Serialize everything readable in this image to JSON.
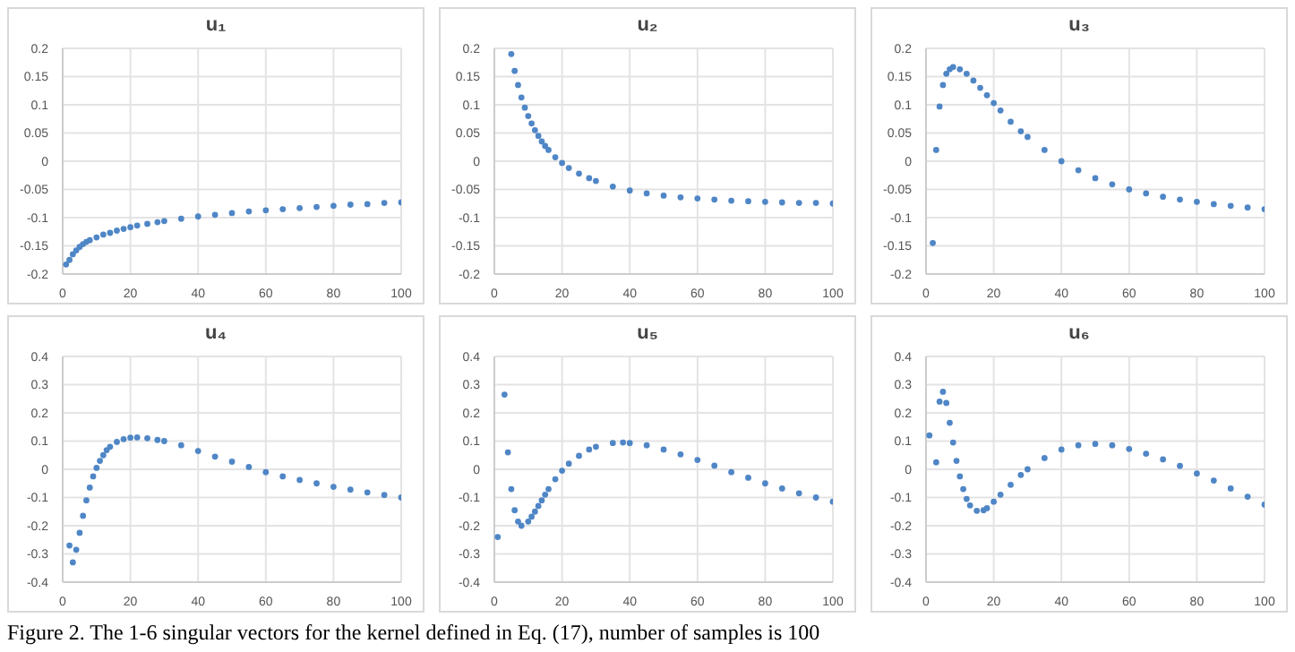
{
  "chart_data": [
    {
      "type": "scatter",
      "title": "u₁",
      "marker": "circle",
      "grid": true,
      "xlim": [
        0,
        100
      ],
      "xticks": [
        0,
        20,
        40,
        60,
        80,
        100
      ],
      "ylim": [
        -0.2,
        0.2
      ],
      "yticks": [
        -0.2,
        -0.15,
        -0.1,
        -0.05,
        0,
        0.05,
        0.1,
        0.15,
        0.2
      ],
      "series": [
        {
          "color": "#4f86c6",
          "x": [
            1,
            2,
            3,
            4,
            5,
            6,
            7,
            8,
            10,
            12,
            14,
            16,
            18,
            20,
            22,
            25,
            28,
            30,
            35,
            40,
            45,
            50,
            55,
            60,
            65,
            70,
            75,
            80,
            85,
            90,
            95,
            100
          ],
          "values": [
            -0.183,
            -0.175,
            -0.165,
            -0.158,
            -0.152,
            -0.147,
            -0.143,
            -0.14,
            -0.135,
            -0.13,
            -0.127,
            -0.123,
            -0.12,
            -0.117,
            -0.114,
            -0.111,
            -0.108,
            -0.106,
            -0.102,
            -0.098,
            -0.095,
            -0.092,
            -0.089,
            -0.087,
            -0.085,
            -0.083,
            -0.081,
            -0.079,
            -0.077,
            -0.076,
            -0.074,
            -0.073
          ]
        }
      ]
    },
    {
      "type": "scatter",
      "title": "u₂",
      "marker": "circle",
      "grid": true,
      "xlim": [
        0,
        100
      ],
      "xticks": [
        0,
        20,
        40,
        60,
        80,
        100
      ],
      "ylim": [
        -0.2,
        0.2
      ],
      "yticks": [
        -0.2,
        -0.15,
        -0.1,
        -0.05,
        0,
        0.05,
        0.1,
        0.15,
        0.2
      ],
      "series": [
        {
          "color": "#4f86c6",
          "x": [
            5,
            6,
            7,
            8,
            9,
            10,
            11,
            12,
            13,
            14,
            15,
            16,
            18,
            20,
            22,
            25,
            28,
            30,
            35,
            40,
            45,
            50,
            55,
            60,
            65,
            70,
            75,
            80,
            85,
            90,
            95,
            100
          ],
          "values": [
            0.19,
            0.16,
            0.135,
            0.113,
            0.095,
            0.08,
            0.067,
            0.055,
            0.045,
            0.035,
            0.027,
            0.02,
            0.007,
            -0.003,
            -0.012,
            -0.022,
            -0.03,
            -0.035,
            -0.045,
            -0.052,
            -0.057,
            -0.061,
            -0.064,
            -0.066,
            -0.068,
            -0.07,
            -0.071,
            -0.072,
            -0.073,
            -0.074,
            -0.074,
            -0.075
          ]
        }
      ]
    },
    {
      "type": "scatter",
      "title": "u₃",
      "marker": "circle",
      "grid": true,
      "xlim": [
        0,
        100
      ],
      "xticks": [
        0,
        20,
        40,
        60,
        80,
        100
      ],
      "ylim": [
        -0.2,
        0.2
      ],
      "yticks": [
        -0.2,
        -0.15,
        -0.1,
        -0.05,
        0,
        0.05,
        0.1,
        0.15,
        0.2
      ],
      "series": [
        {
          "color": "#4f86c6",
          "x": [
            2,
            3,
            4,
            5,
            6,
            7,
            8,
            10,
            12,
            14,
            16,
            18,
            20,
            22,
            25,
            28,
            30,
            35,
            40,
            45,
            50,
            55,
            60,
            65,
            70,
            75,
            80,
            85,
            90,
            95,
            100
          ],
          "values": [
            -0.145,
            0.02,
            0.097,
            0.135,
            0.155,
            0.163,
            0.167,
            0.163,
            0.155,
            0.143,
            0.13,
            0.117,
            0.103,
            0.09,
            0.07,
            0.053,
            0.043,
            0.02,
            0.0,
            -0.016,
            -0.03,
            -0.041,
            -0.05,
            -0.057,
            -0.063,
            -0.068,
            -0.072,
            -0.076,
            -0.079,
            -0.082,
            -0.085
          ]
        }
      ]
    },
    {
      "type": "scatter",
      "title": "u₄",
      "marker": "circle",
      "grid": true,
      "xlim": [
        0,
        100
      ],
      "xticks": [
        0,
        20,
        40,
        60,
        80,
        100
      ],
      "ylim": [
        -0.4,
        0.4
      ],
      "yticks": [
        -0.4,
        -0.3,
        -0.2,
        -0.1,
        0,
        0.1,
        0.2,
        0.3,
        0.4
      ],
      "series": [
        {
          "color": "#4f86c6",
          "x": [
            2,
            3,
            4,
            5,
            6,
            7,
            8,
            9,
            10,
            11,
            12,
            13,
            14,
            16,
            18,
            20,
            22,
            25,
            28,
            30,
            35,
            40,
            45,
            50,
            55,
            60,
            65,
            70,
            75,
            80,
            85,
            90,
            95,
            100
          ],
          "values": [
            -0.27,
            -0.33,
            -0.285,
            -0.225,
            -0.165,
            -0.11,
            -0.065,
            -0.025,
            0.005,
            0.03,
            0.05,
            0.068,
            0.08,
            0.097,
            0.107,
            0.112,
            0.113,
            0.11,
            0.104,
            0.1,
            0.085,
            0.065,
            0.045,
            0.027,
            0.008,
            -0.01,
            -0.025,
            -0.038,
            -0.05,
            -0.062,
            -0.072,
            -0.082,
            -0.091,
            -0.1
          ]
        }
      ]
    },
    {
      "type": "scatter",
      "title": "u₅",
      "marker": "circle",
      "grid": true,
      "xlim": [
        0,
        100
      ],
      "xticks": [
        0,
        20,
        40,
        60,
        80,
        100
      ],
      "ylim": [
        -0.4,
        0.4
      ],
      "yticks": [
        -0.4,
        -0.3,
        -0.2,
        -0.1,
        0,
        0.1,
        0.2,
        0.3,
        0.4
      ],
      "series": [
        {
          "color": "#4f86c6",
          "x": [
            1,
            3,
            4,
            5,
            6,
            7,
            8,
            10,
            11,
            12,
            13,
            14,
            15,
            16,
            18,
            20,
            22,
            25,
            28,
            30,
            35,
            38,
            40,
            45,
            50,
            55,
            60,
            65,
            70,
            75,
            80,
            85,
            90,
            95,
            100
          ],
          "values": [
            -0.24,
            0.265,
            0.06,
            -0.07,
            -0.145,
            -0.185,
            -0.2,
            -0.185,
            -0.168,
            -0.15,
            -0.13,
            -0.11,
            -0.09,
            -0.07,
            -0.035,
            -0.005,
            0.02,
            0.048,
            0.07,
            0.08,
            0.093,
            0.095,
            0.093,
            0.085,
            0.07,
            0.053,
            0.033,
            0.013,
            -0.01,
            -0.03,
            -0.05,
            -0.068,
            -0.085,
            -0.1,
            -0.115
          ]
        }
      ]
    },
    {
      "type": "scatter",
      "title": "u₆",
      "marker": "circle",
      "grid": true,
      "xlim": [
        0,
        100
      ],
      "xticks": [
        0,
        20,
        40,
        60,
        80,
        100
      ],
      "ylim": [
        -0.4,
        0.4
      ],
      "yticks": [
        -0.4,
        -0.3,
        -0.2,
        -0.1,
        0,
        0.1,
        0.2,
        0.3,
        0.4
      ],
      "annotations": [
        "Figure 2. The 1-6 singular vectors for the kernel defined in Eq. (17), number of samples is 100"
      ],
      "series": [
        {
          "color": "#4f86c6",
          "x": [
            1,
            3,
            4,
            5,
            6,
            7,
            8,
            9,
            10,
            11,
            12,
            13,
            15,
            17,
            18,
            20,
            22,
            25,
            28,
            30,
            35,
            40,
            45,
            50,
            55,
            60,
            65,
            70,
            75,
            80,
            85,
            90,
            95,
            100
          ],
          "values": [
            0.12,
            0.025,
            0.24,
            0.275,
            0.235,
            0.165,
            0.095,
            0.03,
            -0.025,
            -0.07,
            -0.105,
            -0.128,
            -0.147,
            -0.145,
            -0.138,
            -0.115,
            -0.09,
            -0.055,
            -0.02,
            0.0,
            0.04,
            0.07,
            0.085,
            0.09,
            0.085,
            0.072,
            0.055,
            0.035,
            0.012,
            -0.015,
            -0.04,
            -0.068,
            -0.097,
            -0.125
          ]
        }
      ]
    }
  ]
}
